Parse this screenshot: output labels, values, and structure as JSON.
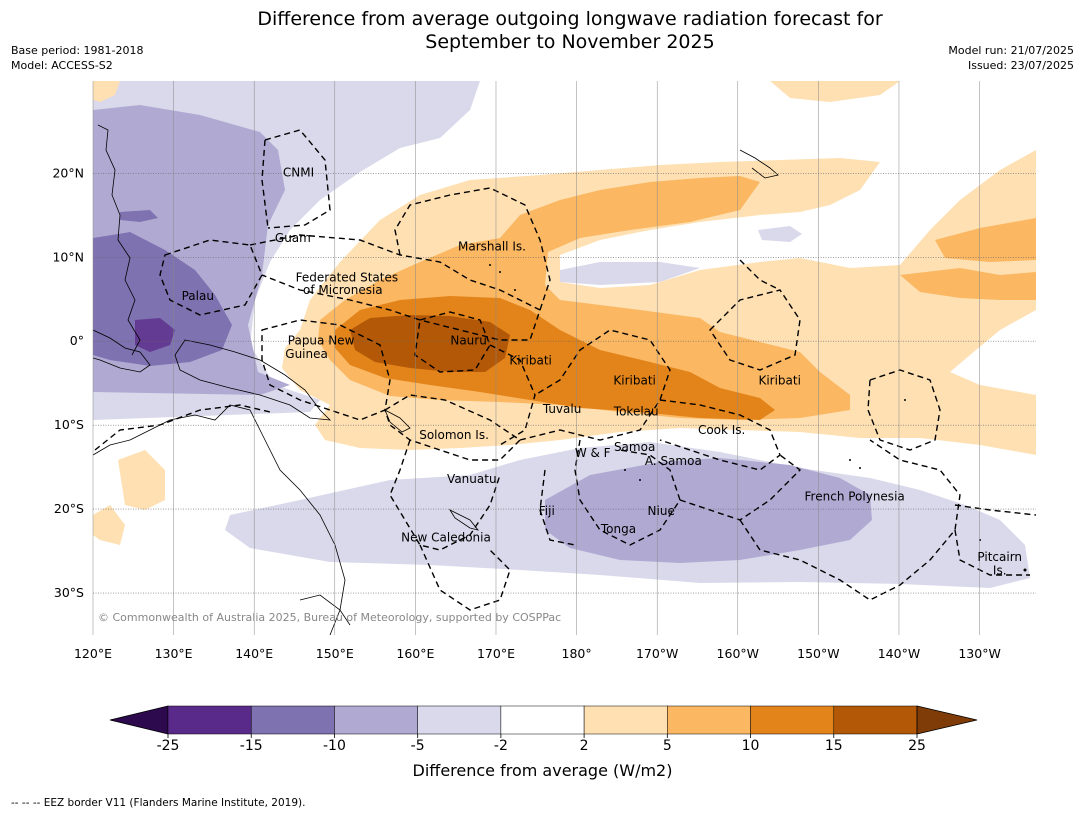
{
  "title": {
    "line1": "Difference from average outgoing longwave radiation forecast for",
    "line2": "September to November 2025"
  },
  "meta": {
    "base_period": "Base period: 1981-2018",
    "model": "Model: ACCESS-S2",
    "model_run": "Model run: 21/07/2025",
    "issued": "Issued: 23/07/2025"
  },
  "map": {
    "lon_range": [
      120,
      237
    ],
    "lat_range": [
      -35,
      31
    ],
    "lon_ticks": [
      {
        "lon": 120,
        "label": "120°E"
      },
      {
        "lon": 130,
        "label": "130°E"
      },
      {
        "lon": 140,
        "label": "140°E"
      },
      {
        "lon": 150,
        "label": "150°E"
      },
      {
        "lon": 160,
        "label": "160°E"
      },
      {
        "lon": 170,
        "label": "170°E"
      },
      {
        "lon": 180,
        "label": "180°"
      },
      {
        "lon": 190,
        "label": "170°W"
      },
      {
        "lon": 200,
        "label": "160°W"
      },
      {
        "lon": 210,
        "label": "150°W"
      },
      {
        "lon": 220,
        "label": "140°W"
      },
      {
        "lon": 230,
        "label": "130°W"
      }
    ],
    "lat_ticks": [
      {
        "lat": 20,
        "label": "20°N"
      },
      {
        "lat": 10,
        "label": "10°N"
      },
      {
        "lat": 0,
        "label": "0°"
      },
      {
        "lat": -10,
        "label": "10°S"
      },
      {
        "lat": -20,
        "label": "20°S"
      },
      {
        "lat": -30,
        "label": "30°S"
      }
    ],
    "copyright": "© Commonwealth of Australia 2025, Bureau of Meteorology, supported by COSPPac",
    "regions": [
      {
        "name": "CNMI",
        "lon": 145.5,
        "lat": 20.1
      },
      {
        "name": "Guam",
        "lon": 144.8,
        "lat": 12.3
      },
      {
        "name": "Federated States",
        "lon": 151.5,
        "lat": 7.6
      },
      {
        "name": "of Micronesia",
        "lon": 151,
        "lat": 6.1
      },
      {
        "name": "Palau",
        "lon": 133,
        "lat": 5.4
      },
      {
        "name": "Marshall Is.",
        "lon": 169.5,
        "lat": 11.3
      },
      {
        "name": "Papua New",
        "lon": 148.3,
        "lat": 0.1
      },
      {
        "name": "Guinea",
        "lon": 146.5,
        "lat": -1.5
      },
      {
        "name": "Nauru",
        "lon": 166.6,
        "lat": 0.1
      },
      {
        "name": "Kiribati",
        "lon": 174.3,
        "lat": -2.3
      },
      {
        "name": "Kiribati",
        "lon": 187.2,
        "lat": -4.7
      },
      {
        "name": "Kiribati",
        "lon": 205.2,
        "lat": -4.7
      },
      {
        "name": "Tuvalu",
        "lon": 178.2,
        "lat": -8.1
      },
      {
        "name": "Tokelau",
        "lon": 187.4,
        "lat": -8.4
      },
      {
        "name": "Cook Is.",
        "lon": 198,
        "lat": -10.6
      },
      {
        "name": "Solomon Is.",
        "lon": 164.8,
        "lat": -11.2
      },
      {
        "name": "Samoa",
        "lon": 187.2,
        "lat": -12.6
      },
      {
        "name": "W & F",
        "lon": 182,
        "lat": -13.3
      },
      {
        "name": "A. Samoa",
        "lon": 192,
        "lat": -14.3
      },
      {
        "name": "Vanuatu",
        "lon": 167,
        "lat": -16.4
      },
      {
        "name": "Fiji",
        "lon": 176.3,
        "lat": -20.2
      },
      {
        "name": "Niue",
        "lon": 190.5,
        "lat": -20.2
      },
      {
        "name": "Tonga",
        "lon": 185.2,
        "lat": -22.4
      },
      {
        "name": "French Polynesia",
        "lon": 214.5,
        "lat": -18.5
      },
      {
        "name": "New Caledonia",
        "lon": 163.8,
        "lat": -23.4
      },
      {
        "name": "Pitcairn",
        "lon": 232.5,
        "lat": -25.7
      },
      {
        "name": "Is.",
        "lon": 232.5,
        "lat": -27.3
      }
    ]
  },
  "colorbar": {
    "ticks": [
      "-25",
      "-15",
      "-10",
      "-5",
      "-2",
      "2",
      "5",
      "10",
      "15",
      "25"
    ],
    "colors": [
      "#2d0a4e",
      "#5a2a8a",
      "#7f72b1",
      "#b0aad3",
      "#d9d9eb",
      "#ffffff",
      "#fee0b2",
      "#fbb762",
      "#e3841a",
      "#b35806",
      "#7f3b08"
    ],
    "label": "Difference from average (W/m2)"
  },
  "footer": "--  --  -- EEZ border V11 (Flanders Marine Institute, 2019)."
}
